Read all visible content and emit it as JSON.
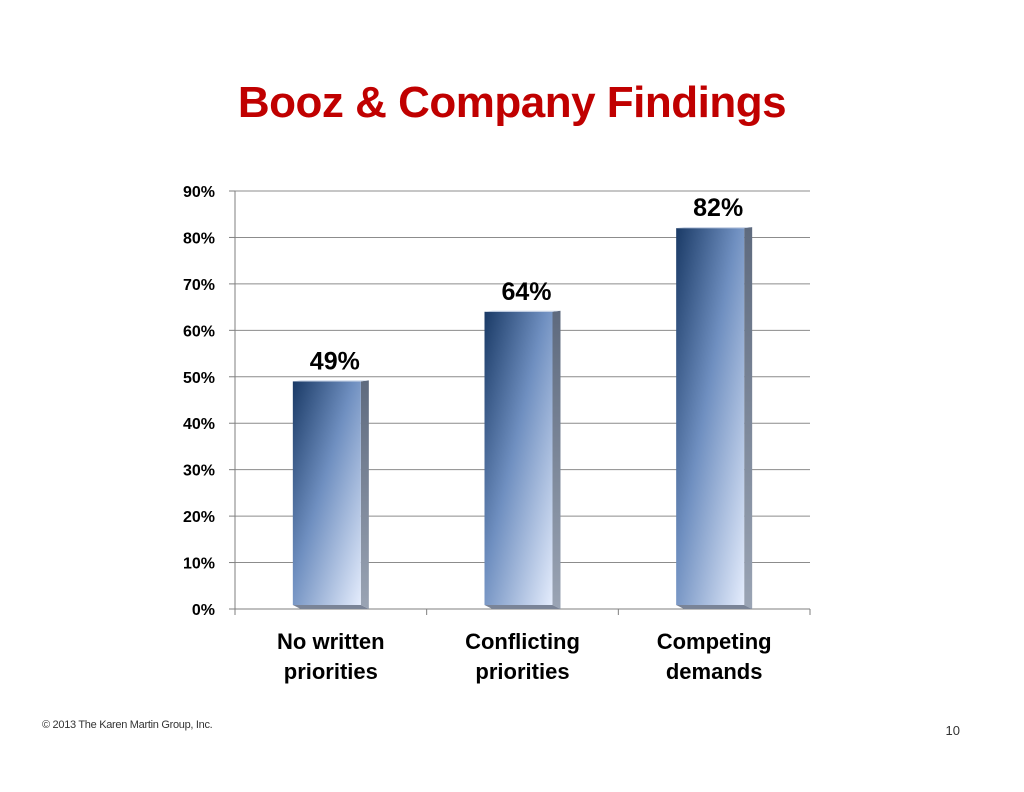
{
  "slide": {
    "title": "Booz & Company Findings",
    "copyright": "© 2013 The Karen Martin Group, Inc.",
    "page_number": "10"
  },
  "colors": {
    "title": "#c00000",
    "bar_dark": "#1a3a66",
    "bar_light": "#d6e2fa",
    "gridline": "#8c8c8c"
  },
  "chart_data": {
    "type": "bar",
    "title": "",
    "xlabel": "",
    "ylabel": "",
    "categories": [
      "No written\npriorities",
      "Conflicting\npriorities",
      "Competing\ndemands"
    ],
    "values": [
      49,
      64,
      82
    ],
    "data_labels": [
      "49%",
      "64%",
      "82%"
    ],
    "ylim": [
      0,
      90
    ],
    "yticks": [
      0,
      10,
      20,
      30,
      40,
      50,
      60,
      70,
      80,
      90
    ],
    "ytick_labels": [
      "0%",
      "10%",
      "20%",
      "30%",
      "40%",
      "50%",
      "60%",
      "70%",
      "80%",
      "90%"
    ],
    "grid": true,
    "legend": "none",
    "style": "3d-gradient-bars"
  }
}
